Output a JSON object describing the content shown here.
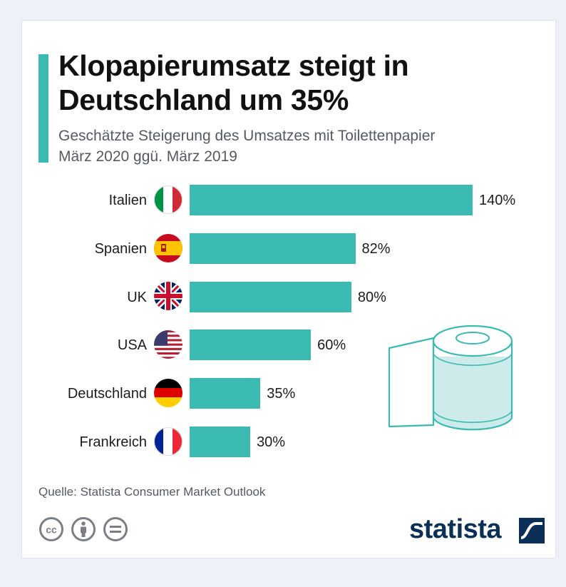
{
  "header": {
    "title": "Klopapierumsatz steigt in Deutschland um 35%",
    "subtitle_line1": "Geschätzte Steigerung des Umsatzes mit Toilettenpapier",
    "subtitle_line2": "März 2020 ggü. März 2019"
  },
  "chart_data": {
    "type": "bar",
    "orientation": "horizontal",
    "title": "Klopapierumsatz steigt in Deutschland um 35%",
    "subtitle": "Geschätzte Steigerung des Umsatzes mit Toilettenpapier März 2020 ggü. März 2019",
    "categories": [
      "Italien",
      "Spanien",
      "UK",
      "USA",
      "Deutschland",
      "Frankreich"
    ],
    "values": [
      140,
      82,
      80,
      60,
      35,
      30
    ],
    "value_labels": [
      "140%",
      "82%",
      "80%",
      "60%",
      "35%",
      "30%"
    ],
    "unit": "%",
    "xlim": [
      0,
      140
    ],
    "bar_color": "#3bbab1",
    "grid": false
  },
  "flags": [
    "italy-flag-icon",
    "spain-flag-icon",
    "uk-flag-icon",
    "usa-flag-icon",
    "germany-flag-icon",
    "france-flag-icon"
  ],
  "footer": {
    "source": "Quelle: Statista Consumer Market Outlook",
    "brand": "statista",
    "license_icons": [
      "cc-icon",
      "attribution-icon",
      "no-derivatives-icon"
    ]
  },
  "colors": {
    "accent": "#3bbab1",
    "brand": "#0c2f57"
  }
}
